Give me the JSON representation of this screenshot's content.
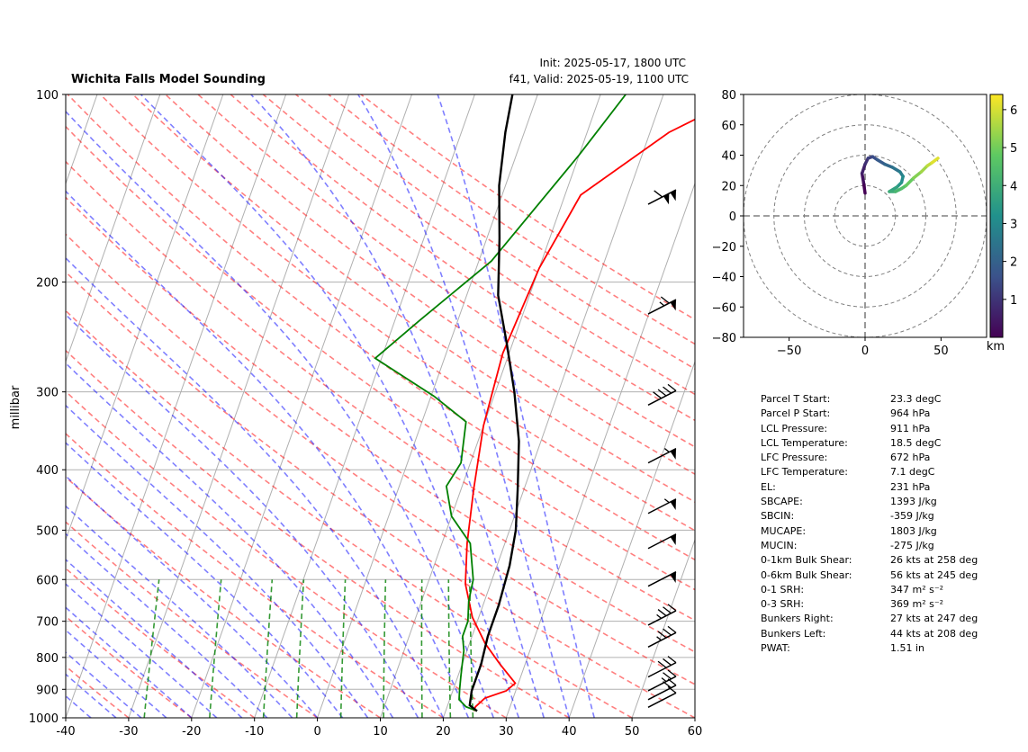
{
  "header": {
    "title": "Wichita Falls Model Sounding",
    "init": "Init: 2025-05-17, 1800 UTC",
    "valid": "f41, Valid: 2025-05-19, 1100 UTC"
  },
  "chart_data": [
    {
      "type": "skew-t",
      "title": "Wichita Falls Model Sounding",
      "ylabel": "millibar",
      "xlim": [
        -40,
        60
      ],
      "ylim": [
        1000,
        100
      ],
      "y_scale": "log",
      "x_ticks": [
        -40,
        -30,
        -20,
        -10,
        0,
        10,
        20,
        30,
        40,
        50,
        60
      ],
      "y_ticks": [
        100,
        200,
        300,
        400,
        500,
        600,
        700,
        800,
        900,
        1000
      ],
      "grid": true,
      "series": [
        {
          "color": "#ff0000",
          "role": "temperature",
          "points": [
            [
              24.5,
              975
            ],
            [
              24.5,
              960
            ],
            [
              25.5,
              930
            ],
            [
              28.5,
              905
            ],
            [
              29.5,
              880
            ],
            [
              26,
              820
            ],
            [
              22.5,
              760
            ],
            [
              19,
              690
            ],
            [
              16,
              610
            ],
            [
              14,
              525
            ],
            [
              12,
              430
            ],
            [
              10,
              340
            ],
            [
              9,
              260
            ],
            [
              10,
              190
            ],
            [
              12.5,
              145
            ],
            [
              23,
              115
            ],
            [
              33,
              100
            ]
          ]
        },
        {
          "color": "#008000",
          "role": "dewpoint",
          "points": [
            [
              25,
              975
            ],
            [
              23,
              960
            ],
            [
              21.5,
              935
            ],
            [
              21,
              900
            ],
            [
              20.5,
              860
            ],
            [
              20,
              820
            ],
            [
              19.5,
              780
            ],
            [
              18.5,
              740
            ],
            [
              18.5,
              700
            ],
            [
              17.5,
              650
            ],
            [
              17,
              600
            ],
            [
              14.5,
              525
            ],
            [
              10,
              475
            ],
            [
              7.5,
              425
            ],
            [
              8.5,
              390
            ],
            [
              7,
              335
            ],
            [
              0.5,
              305
            ],
            [
              -11,
              265
            ],
            [
              -6,
              230
            ],
            [
              2,
              185
            ],
            [
              10,
              125
            ],
            [
              14,
              100
            ]
          ]
        },
        {
          "color": "#000000",
          "role": "parcel",
          "points": [
            [
              25,
              975
            ],
            [
              23.5,
              955
            ],
            [
              23,
              905
            ],
            [
              23,
              820
            ],
            [
              22.5,
              740
            ],
            [
              22.5,
              660
            ],
            [
              22,
              570
            ],
            [
              21,
              500
            ],
            [
              19,
              430
            ],
            [
              16.5,
              360
            ],
            [
              13,
              300
            ],
            [
              9,
              250
            ],
            [
              5,
              210
            ],
            [
              2,
              170
            ],
            [
              -1,
              140
            ],
            [
              -3,
              115
            ],
            [
              -4,
              100
            ]
          ]
        }
      ],
      "wind_barbs": [
        {
          "pressure": 962,
          "speed_kt": 10
        },
        {
          "pressure": 935,
          "speed_kt": 20
        },
        {
          "pressure": 905,
          "speed_kt": 25
        },
        {
          "pressure": 860,
          "speed_kt": 30
        },
        {
          "pressure": 770,
          "speed_kt": 35
        },
        {
          "pressure": 710,
          "speed_kt": 35
        },
        {
          "pressure": 615,
          "speed_kt": 50
        },
        {
          "pressure": 535,
          "speed_kt": 50
        },
        {
          "pressure": 470,
          "speed_kt": 55
        },
        {
          "pressure": 390,
          "speed_kt": 55
        },
        {
          "pressure": 315,
          "speed_kt": 40
        },
        {
          "pressure": 225,
          "speed_kt": 65
        },
        {
          "pressure": 150,
          "speed_kt": 110
        }
      ]
    },
    {
      "type": "hodograph",
      "xlim": [
        -80,
        80
      ],
      "ylim": [
        -80,
        80
      ],
      "x_ticks": [
        -50,
        0,
        50
      ],
      "y_ticks": [
        -80,
        -60,
        -40,
        -20,
        0,
        20,
        40,
        60,
        80
      ],
      "rings": [
        20,
        40,
        60,
        80
      ],
      "colorbar": {
        "label": "km",
        "ticks": [
          1,
          2,
          3,
          4,
          5,
          6
        ],
        "range": [
          0,
          6.4
        ],
        "colormap": "viridis"
      },
      "points": [
        [
          0,
          15
        ],
        [
          -1,
          22
        ],
        [
          -2,
          28
        ],
        [
          0,
          34
        ],
        [
          2,
          38
        ],
        [
          5,
          39
        ],
        [
          8,
          37
        ],
        [
          13,
          34
        ],
        [
          18,
          32
        ],
        [
          23,
          29
        ],
        [
          25,
          26
        ],
        [
          24,
          22
        ],
        [
          21,
          19
        ],
        [
          16,
          16
        ],
        [
          20,
          16
        ],
        [
          24,
          18
        ],
        [
          27,
          20
        ],
        [
          32,
          25
        ],
        [
          37,
          29
        ],
        [
          41,
          33
        ],
        [
          44,
          35
        ],
        [
          48,
          38
        ]
      ]
    }
  ],
  "stats": [
    {
      "label": "Parcel T Start:",
      "value": "23.3 degC"
    },
    {
      "label": "Parcel P Start:",
      "value": "964 hPa"
    },
    {
      "label": "LCL Pressure:",
      "value": "911 hPa"
    },
    {
      "label": "LCL Temperature:",
      "value": "18.5 degC"
    },
    {
      "label": "LFC Pressure:",
      "value": "672 hPa"
    },
    {
      "label": "LFC Temperature:",
      "value": "7.1 degC"
    },
    {
      "label": "EL:",
      "value": "231 hPa"
    },
    {
      "label": "SBCAPE:",
      "value": "1393 J/kg"
    },
    {
      "label": "SBCIN:",
      "value": "-359 J/kg"
    },
    {
      "label": "MUCAPE:",
      "value": "1803 J/kg"
    },
    {
      "label": "MUCIN:",
      "value": "-275 J/kg"
    },
    {
      "label": "0-1km Bulk Shear:",
      "value": "26 kts at 258 deg"
    },
    {
      "label": "0-6km Bulk Shear:",
      "value": "56 kts at 245 deg"
    },
    {
      "label": "0-1 SRH:",
      "value": "347 m² s⁻²"
    },
    {
      "label": "0-3 SRH:",
      "value": "369 m² s⁻²"
    },
    {
      "label": "Bunkers Right:",
      "value": "27 kts at 247 deg"
    },
    {
      "label": "Bunkers Left:",
      "value": "44 kts at 208 deg"
    },
    {
      "label": "PWAT:",
      "value": "1.51 in"
    }
  ]
}
